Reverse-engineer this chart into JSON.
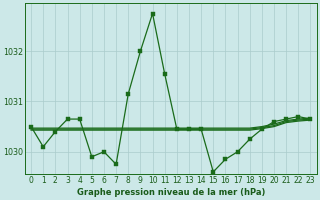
{
  "title": "Graphe pression niveau de la mer (hPa)",
  "bg_color": "#cce8e8",
  "grid_color": "#aacccc",
  "line_color": "#1a6b1a",
  "axis_color": "#1a6b1a",
  "label_color": "#1a5c1a",
  "x_labels": [
    "0",
    "1",
    "2",
    "3",
    "4",
    "5",
    "6",
    "7",
    "8",
    "9",
    "10",
    "11",
    "12",
    "13",
    "14",
    "15",
    "16",
    "17",
    "18",
    "19",
    "20",
    "21",
    "22",
    "23"
  ],
  "x_values": [
    0,
    1,
    2,
    3,
    4,
    5,
    6,
    7,
    8,
    9,
    10,
    11,
    12,
    13,
    14,
    15,
    16,
    17,
    18,
    19,
    20,
    21,
    22,
    23
  ],
  "hourly": [
    1030.5,
    1030.1,
    1030.4,
    1030.65,
    1030.65,
    1029.9,
    1030.0,
    1029.75,
    1031.15,
    1032.0,
    1032.75,
    1031.55,
    1030.45,
    1030.45,
    1030.45,
    1029.6,
    1029.85,
    1030.0,
    1030.25,
    1030.45,
    1030.6,
    1030.65,
    1030.7,
    1030.65
  ],
  "flat1": [
    1030.47,
    1030.47,
    1030.47,
    1030.47,
    1030.47,
    1030.47,
    1030.47,
    1030.47,
    1030.47,
    1030.47,
    1030.47,
    1030.47,
    1030.47,
    1030.47,
    1030.47,
    1030.47,
    1030.47,
    1030.47,
    1030.47,
    1030.5,
    1030.55,
    1030.62,
    1030.65,
    1030.67
  ],
  "flat2": [
    1030.45,
    1030.45,
    1030.45,
    1030.45,
    1030.45,
    1030.45,
    1030.45,
    1030.45,
    1030.45,
    1030.45,
    1030.45,
    1030.45,
    1030.45,
    1030.45,
    1030.45,
    1030.45,
    1030.45,
    1030.45,
    1030.45,
    1030.48,
    1030.52,
    1030.6,
    1030.63,
    1030.65
  ],
  "flat3": [
    1030.43,
    1030.43,
    1030.43,
    1030.43,
    1030.43,
    1030.43,
    1030.43,
    1030.43,
    1030.43,
    1030.43,
    1030.43,
    1030.43,
    1030.43,
    1030.43,
    1030.43,
    1030.43,
    1030.43,
    1030.43,
    1030.43,
    1030.46,
    1030.5,
    1030.58,
    1030.61,
    1030.63
  ],
  "ylim": [
    1029.55,
    1032.95
  ],
  "yticks": [
    1030,
    1031,
    1032
  ],
  "marker_size": 2.5,
  "lw": 0.9,
  "title_fontsize": 6.0,
  "tick_fontsize": 5.5
}
